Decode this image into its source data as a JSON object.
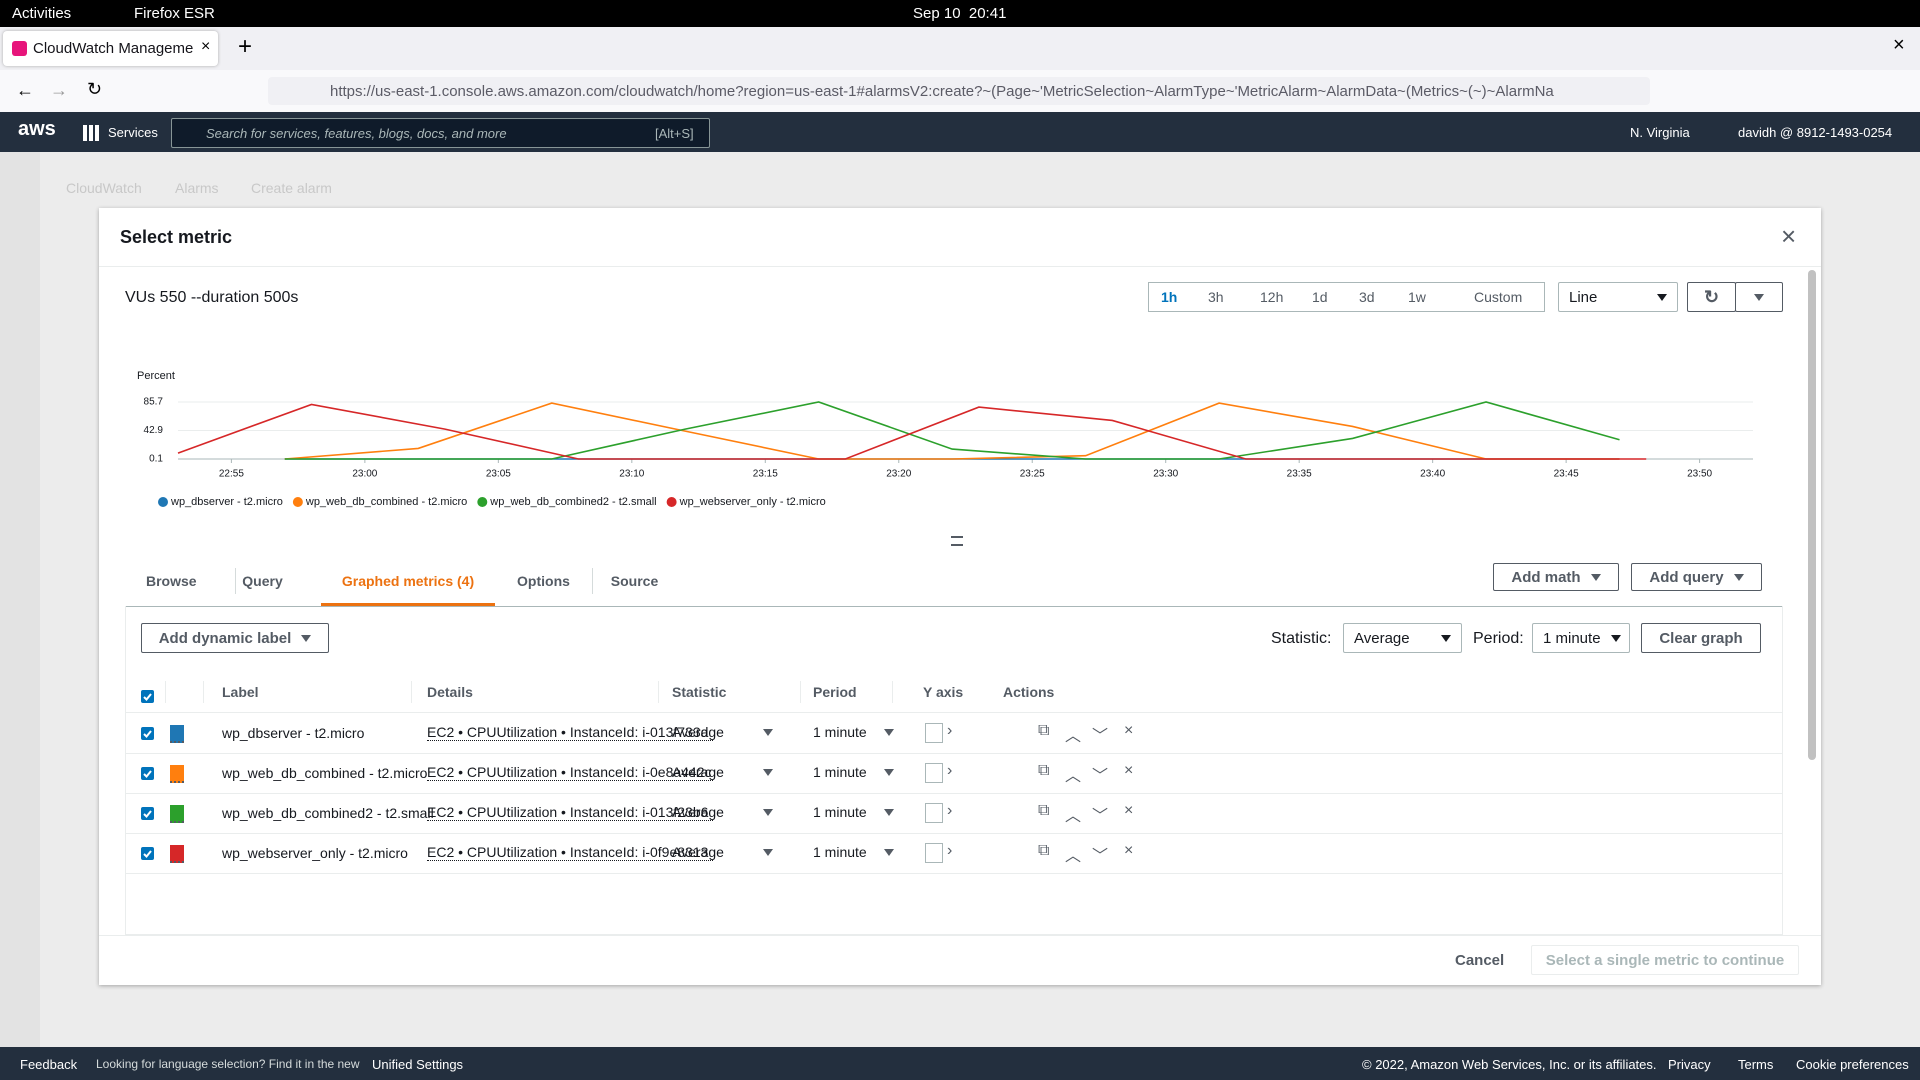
{
  "system_bar": {
    "activities": "Activities",
    "app": "Firefox ESR",
    "clock": "Sep 10  20:41"
  },
  "browser": {
    "tab_title": "CloudWatch Management Console",
    "url": "https://us-east-1.console.aws.amazon.com/cloudwatch/home?region=us-east-1#alarmsV2:create?~(Page~'MetricSelection~AlarmType~'MetricAlarm~AlarmData~(Metrics~(~)~AlarmNa"
  },
  "aws_nav": {
    "logo": "aws",
    "services": "Services",
    "search_placeholder": "Search for services, features, blogs, docs, and more",
    "shortcut": "[Alt+S]",
    "region": "N. Virginia",
    "account": "davidh @ 8912-1493-0254"
  },
  "breadcrumbs": [
    "CloudWatch",
    "Alarms",
    "Create alarm"
  ],
  "modal": {
    "title": "Select metric",
    "graph_title": "VUs 550 --duration 500s",
    "time_ranges": [
      "1h",
      "3h",
      "12h",
      "1d",
      "3d",
      "1w",
      "Custom"
    ],
    "chart_style": "Line",
    "tabs": [
      "Browse",
      "Query",
      "Graphed metrics (4)",
      "Options",
      "Source"
    ],
    "add_math": "Add math",
    "add_query": "Add query",
    "add_dynamic_label": "Add dynamic label",
    "statistic_label": "Statistic:",
    "statistic": "Average",
    "period_label": "Period:",
    "period": "1 minute",
    "clear_graph": "Clear graph",
    "table": {
      "columns": [
        "Label",
        "Details",
        "Statistic",
        "Period",
        "Y axis",
        "Actions"
      ],
      "rows": [
        {
          "details": "EC2 • CPUUtilization • InstanceId: i-013f733d",
          "statistic": "Average",
          "period": "1 minute"
        },
        {
          "details": "EC2 • CPUUtilization • InstanceId: i-0e8a442c",
          "statistic": "Average",
          "period": "1 minute"
        },
        {
          "details": "EC2 • CPUUtilization • InstanceId: i-013f23b6",
          "statistic": "Average",
          "period": "1 minute"
        },
        {
          "details": "EC2 • CPUUtilization • InstanceId: i-0f9e8313",
          "statistic": "Average",
          "period": "1 minute"
        }
      ]
    },
    "cancel": "Cancel",
    "continue": "Select a single metric to continue"
  },
  "footer": {
    "feedback": "Feedback",
    "notice": "Looking for language selection? Find it in the new",
    "link": "Unified Settings",
    "copyright": "© 2022, Amazon Web Services, Inc. or its affiliates.",
    "links": [
      "Privacy",
      "Terms",
      "Cookie preferences"
    ]
  },
  "chart_data": {
    "type": "line",
    "y_label": "Percent",
    "ylim": [
      0.1,
      85.7
    ],
    "yticks": [
      0.1,
      42.9,
      85.7
    ],
    "xlim": [
      "22:53",
      "23:52"
    ],
    "xticks": [
      "22:55",
      "23:00",
      "23:05",
      "23:10",
      "23:15",
      "23:20",
      "23:25",
      "23:30",
      "23:35",
      "23:40",
      "23:45",
      "23:50"
    ],
    "grid": true,
    "legend": "bottom-left",
    "series": [
      {
        "name": "wp_dbserver - t2.micro",
        "color": "#1f77b4",
        "x": [
          "22:57",
          "23:02",
          "23:07",
          "23:12",
          "23:17",
          "23:22",
          "23:27",
          "23:32",
          "23:37",
          "23:42",
          "23:47"
        ],
        "values": [
          0.1,
          0.1,
          0.1,
          0.1,
          0.1,
          0.1,
          0.1,
          0.1,
          0.1,
          0.1,
          0.1
        ]
      },
      {
        "name": "wp_web_db_combined - t2.micro",
        "color": "#ff7f0e",
        "x": [
          "22:57",
          "23:02",
          "23:07",
          "23:12",
          "23:17",
          "23:22",
          "23:27",
          "23:32",
          "23:37",
          "23:42",
          "23:47"
        ],
        "values": [
          0.1,
          16,
          84,
          42,
          0.1,
          0.1,
          5,
          84,
          49,
          0.1,
          0.1
        ]
      },
      {
        "name": "wp_web_db_combined2 - t2.small",
        "color": "#2ca02c",
        "x": [
          "22:57",
          "23:02",
          "23:07",
          "23:12",
          "23:17",
          "23:22",
          "23:27",
          "23:32",
          "23:37",
          "23:42",
          "23:47"
        ],
        "values": [
          0.1,
          0.1,
          0.1,
          45,
          85.7,
          15,
          0.1,
          0.1,
          31,
          85.7,
          29
        ]
      },
      {
        "name": "wp_webserver_only - t2.micro",
        "color": "#d62728",
        "x": [
          "22:53",
          "22:58",
          "23:03",
          "23:08",
          "23:13",
          "23:18",
          "23:23",
          "23:28",
          "23:33",
          "23:38",
          "23:43",
          "23:48"
        ],
        "values": [
          9,
          82,
          45,
          0.1,
          0.1,
          0.1,
          78,
          58,
          0.1,
          0.1,
          0.1,
          0.1
        ]
      }
    ]
  }
}
